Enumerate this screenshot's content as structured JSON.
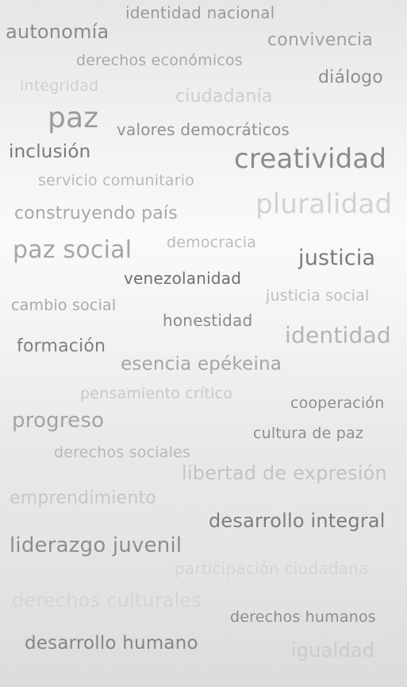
{
  "word_cloud": {
    "words": [
      "identidad nacional",
      "autonomía",
      "convivencia",
      "derechos económicos",
      "diálogo",
      "integridad",
      "ciudadanía",
      "paz",
      "valores democráticos",
      "inclusión",
      "creatividad",
      "servicio comunitario",
      "pluralidad",
      "construyendo país",
      "paz social",
      "democracia",
      "justicia",
      "venezolanidad",
      "justicia social",
      "cambio social",
      "honestidad",
      "identidad",
      "formación",
      "esencia epékeina",
      "pensamiento crítico",
      "cooperación",
      "progreso",
      "cultura de paz",
      "derechos sociales",
      "libertad de expresión",
      "emprendimiento",
      "desarrollo integral",
      "liderazgo juvenil",
      "participación ciudadana",
      "derechos culturales",
      "derechos humanos",
      "desarrollo humano",
      "igualdad"
    ]
  }
}
